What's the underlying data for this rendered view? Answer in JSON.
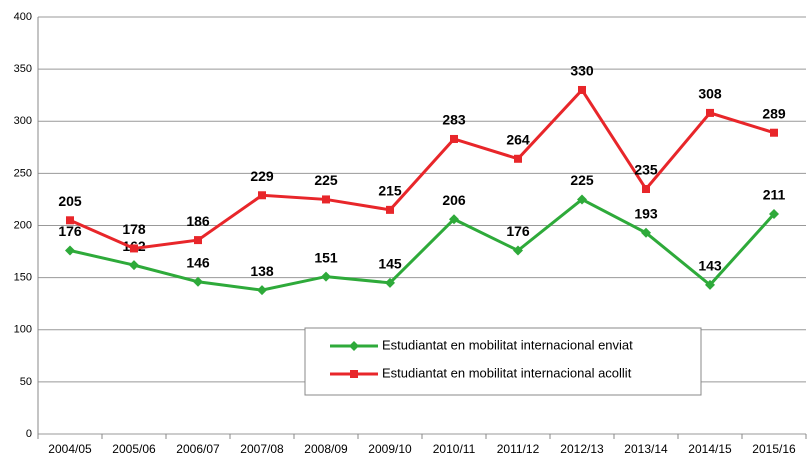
{
  "chart_data": {
    "type": "line",
    "categories": [
      "2004/05",
      "2005/06",
      "2006/07",
      "2007/08",
      "2008/09",
      "2009/10",
      "2010/11",
      "2011/12",
      "2012/13",
      "2013/14",
      "2014/15",
      "2015/16"
    ],
    "series": [
      {
        "name": "Estudiantat en mobilitat internacional enviat",
        "color": "#2eaa3a",
        "marker": "diamond",
        "values": [
          176,
          162,
          146,
          138,
          151,
          145,
          206,
          176,
          225,
          193,
          143,
          211
        ]
      },
      {
        "name": "Estudiantat en mobilitat internacional acollit",
        "color": "#e8262a",
        "marker": "square",
        "values": [
          205,
          178,
          186,
          229,
          225,
          215,
          283,
          264,
          330,
          235,
          308,
          289
        ]
      }
    ],
    "ylim": [
      0,
      400
    ],
    "yticks": [
      0,
      50,
      100,
      150,
      200,
      250,
      300,
      350,
      400
    ],
    "grid": true,
    "legend": "center"
  }
}
